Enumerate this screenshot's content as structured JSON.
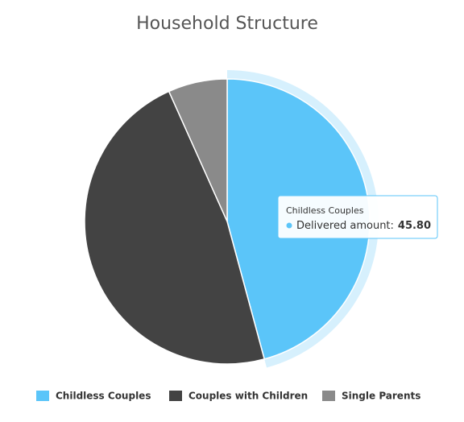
{
  "chart_data": {
    "type": "pie",
    "title": "Household Structure",
    "categories": [
      "Childless Couples",
      "Couples with Children",
      "Single Parents"
    ],
    "values": [
      45.8,
      47.5,
      6.7
    ],
    "colors": [
      "#5bc5f9",
      "#434343",
      "#8a8a8a"
    ],
    "legend": "bottom",
    "tooltip": {
      "title": "Childless Couples",
      "label": "Delivered amount:",
      "value_label": "45.80"
    }
  }
}
